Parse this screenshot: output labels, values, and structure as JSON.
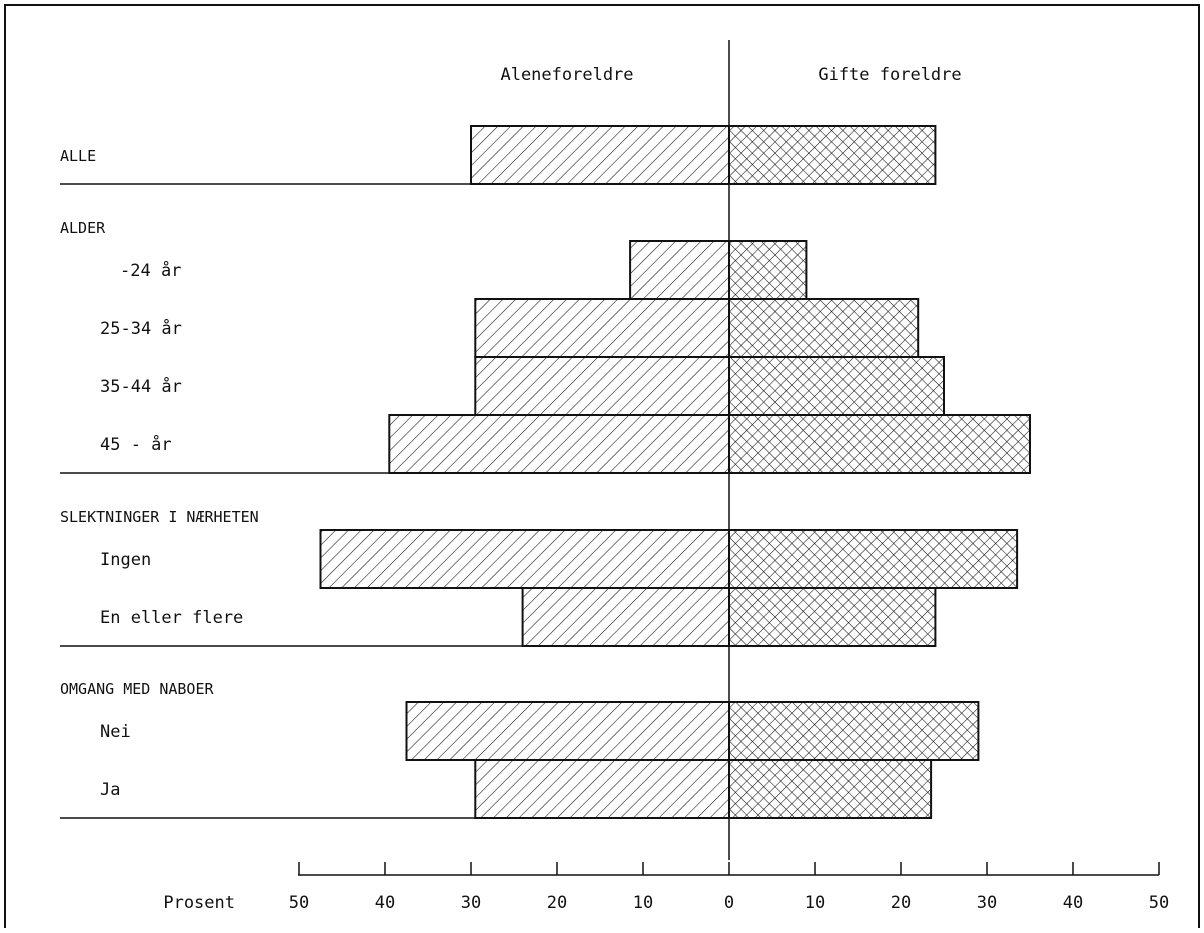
{
  "chart_data": {
    "type": "bar",
    "orientation": "horizontal-butterfly",
    "side_labels": {
      "left": "Aleneforeldre",
      "right": "Gifte foreldre"
    },
    "axis_label": "Prosent",
    "xlim": [
      0,
      50
    ],
    "left_ticks": [
      "50",
      "40",
      "30",
      "20",
      "10"
    ],
    "right_ticks": [
      "0",
      "10",
      "20",
      "30",
      "40",
      "50"
    ],
    "groups": [
      {
        "title": "ALLE",
        "rows": [
          {
            "label": "",
            "left": 30,
            "right": 24
          }
        ]
      },
      {
        "title": "ALDER",
        "rows": [
          {
            "label": "-24 år",
            "left": 11.5,
            "right": 9
          },
          {
            "label": "25-34 år",
            "left": 29.5,
            "right": 22
          },
          {
            "label": "35-44 år",
            "left": 29.5,
            "right": 25
          },
          {
            "label": "45 - år",
            "left": 39.5,
            "right": 35
          }
        ]
      },
      {
        "title": "SLEKTNINGER I NÆRHETEN",
        "rows": [
          {
            "label": "Ingen",
            "left": 47.5,
            "right": 33.5
          },
          {
            "label": "En eller flere",
            "left": 24,
            "right": 24
          }
        ]
      },
      {
        "title": "OMGANG MED NABOER",
        "rows": [
          {
            "label": "Nei",
            "left": 37.5,
            "right": 29
          },
          {
            "label": "Ja",
            "left": 29.5,
            "right": 23.5
          }
        ]
      }
    ]
  }
}
